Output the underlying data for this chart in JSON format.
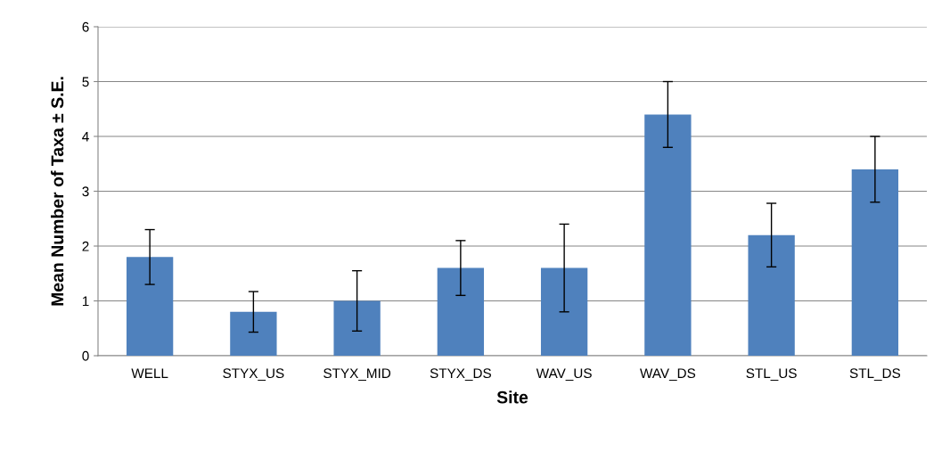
{
  "chart_data": {
    "type": "bar",
    "xlabel": "Site",
    "ylabel": "Mean Number of Taxa ± S.E.",
    "categories": [
      "WELL",
      "STYX_US",
      "STYX_MID",
      "STYX_DS",
      "WAV_US",
      "WAV_DS",
      "STL_US",
      "STL_DS"
    ],
    "values": [
      1.8,
      0.8,
      1.0,
      1.6,
      1.6,
      4.4,
      2.2,
      3.4
    ],
    "errors": [
      0.5,
      0.37,
      0.55,
      0.5,
      0.8,
      0.6,
      0.58,
      0.6
    ],
    "color": "#4f81bd",
    "ylim": [
      0,
      6
    ],
    "yticks": [
      0,
      1,
      2,
      3,
      4,
      5,
      6
    ],
    "grid": "y",
    "legend": false
  }
}
